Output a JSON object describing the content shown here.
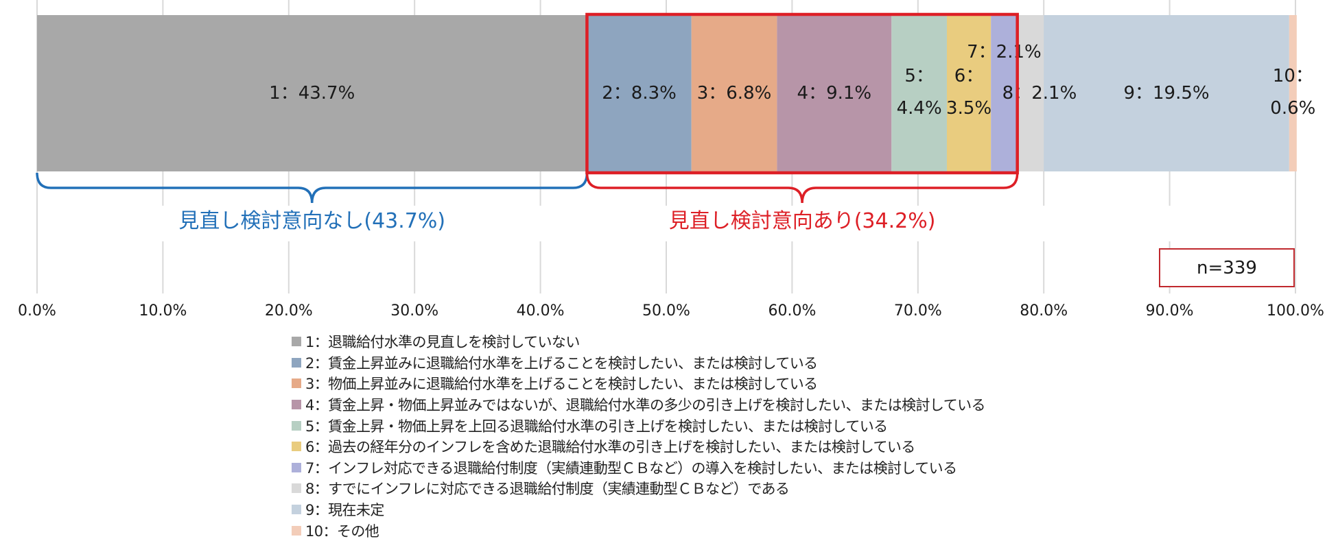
{
  "chart_data": {
    "type": "bar",
    "orientation": "horizontal-stacked-100",
    "xlim": [
      0,
      100
    ],
    "x_ticks": [
      "0.0%",
      "10.0%",
      "20.0%",
      "30.0%",
      "40.0%",
      "50.0%",
      "60.0%",
      "70.0%",
      "80.0%",
      "90.0%",
      "100.0%"
    ],
    "grid": true,
    "legend_position": "bottom",
    "series": [
      {
        "name": "1：退職給付水準の見直しを検討していない",
        "value": 43.7,
        "label_lines": [
          "1：43.7%"
        ],
        "color": "#a8a8a8"
      },
      {
        "name": "2：賃金上昇並みに退職給付水準を上げることを検討したい、または検討している",
        "value": 8.3,
        "label_lines": [
          "2：8.3%"
        ],
        "color": "#8ea5bf"
      },
      {
        "name": "3：物価上昇並みに退職給付水準を上げることを検討したい、または検討している",
        "value": 6.8,
        "label_lines": [
          "3：6.8%"
        ],
        "color": "#e6aa88"
      },
      {
        "name": "4：賃金上昇・物価上昇並みではないが、退職給付水準の多少の引き上げを検討したい、または検討している",
        "value": 9.1,
        "label_lines": [
          "4：9.1%"
        ],
        "color": "#b795a8"
      },
      {
        "name": "5：賃金上昇・物価上昇を上回る退職給付水準の引き上げを検討したい、または検討している",
        "value": 4.4,
        "label_lines": [
          "5：",
          "4.4%"
        ],
        "color": "#b7cfc3"
      },
      {
        "name": "6：過去の経年分のインフレを含めた退職給付水準の引き上げを検討したい、または検討している",
        "value": 3.5,
        "label_lines": [
          "6：",
          "3.5%"
        ],
        "color": "#e9cc7f"
      },
      {
        "name": "7：インフレ対応できる退職給付制度（実績連動型ＣＢなど）の導入を検討したい、または検討している",
        "value": 2.1,
        "label_lines": [
          "7：2.1%"
        ],
        "color": "#adb0da"
      },
      {
        "name": "8：すでにインフレに対応できる退職給付制度（実績連動型ＣＢなど）である",
        "value": 2.1,
        "label_lines": [
          "8：2.1%"
        ],
        "color": "#d9d9d9"
      },
      {
        "name": "9：現在未定",
        "value": 19.5,
        "label_lines": [
          "9：19.5%"
        ],
        "color": "#c4d1de"
      },
      {
        "name": "10：その他",
        "value": 0.6,
        "label_lines": [
          "10：",
          "0.6%"
        ],
        "color": "#f3cdb9"
      }
    ],
    "annotations": {
      "no_review_group": {
        "text": "見直し検討意向なし(43.7%)",
        "from": 0,
        "to": 43.7,
        "color": "#2270b8"
      },
      "review_group": {
        "text": "見直し検討意向あり(34.2%)",
        "from": 43.7,
        "to": 77.9,
        "color": "#dd1f26"
      },
      "sample_size": "n=339"
    }
  }
}
